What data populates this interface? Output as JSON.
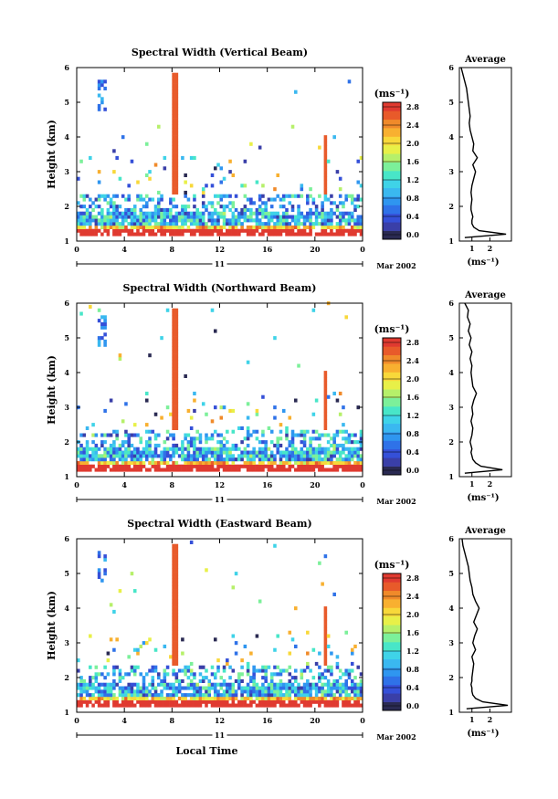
{
  "figure": {
    "bottom_xlabel": "Local Time"
  },
  "colors": {
    "scale": [
      "#2a2a52",
      "#3a3fa8",
      "#3550d8",
      "#2f72e8",
      "#2f96f0",
      "#3ab8f0",
      "#3fd3e8",
      "#48e6c8",
      "#7cf09a",
      "#b6f06a",
      "#e8f048",
      "#f8d83a",
      "#f8b030",
      "#f08a2a",
      "#e85a2a",
      "#e03a30"
    ],
    "line": "#000000"
  },
  "chart_data": [
    {
      "type": "heatmap",
      "title": "Spectral Width (Vertical Beam)",
      "ylabel": "Height (km)",
      "xlim": [
        0,
        24
      ],
      "ylim": [
        1,
        6
      ],
      "xticks": [
        "0",
        "4",
        "8",
        "12",
        "16",
        "20",
        "0"
      ],
      "yticks": [
        "1",
        "2",
        "3",
        "4",
        "5",
        "6"
      ],
      "date_label": "11",
      "date_suffix": "Mar 2002",
      "colorbar": {
        "unit": "(ms⁻¹)",
        "ticks": [
          "0.0",
          "0.4",
          "0.8",
          "1.2",
          "1.6",
          "2.0",
          "2.4",
          "2.8"
        ],
        "range": [
          0,
          3.0
        ]
      },
      "average": {
        "title": "Average",
        "xlabel": "(ms⁻¹)",
        "xticks": [
          "1",
          "2"
        ],
        "xlim": [
          0.3,
          3.2
        ],
        "ylim": [
          1,
          6
        ],
        "height": [
          1.1,
          1.2,
          1.3,
          1.4,
          1.5,
          1.6,
          1.7,
          1.8,
          1.9,
          2.0,
          2.2,
          2.4,
          2.6,
          2.8,
          3.0,
          3.2,
          3.4,
          3.6,
          3.8,
          4.0,
          4.2,
          4.4,
          4.6,
          4.8,
          5.0,
          5.2,
          5.4,
          5.6,
          5.8,
          6.0
        ],
        "width": [
          0.6,
          2.9,
          1.4,
          1.1,
          1.0,
          1.0,
          1.05,
          1.0,
          0.95,
          0.95,
          1.0,
          0.95,
          1.0,
          1.1,
          1.2,
          1.05,
          1.3,
          1.05,
          1.1,
          1.0,
          0.9,
          0.85,
          0.9,
          0.85,
          0.8,
          0.75,
          0.7,
          0.6,
          0.5,
          0.4
        ]
      }
    },
    {
      "type": "heatmap",
      "title": "Spectral Width (Northward Beam)",
      "ylabel": "Height (km)",
      "xlim": [
        0,
        24
      ],
      "ylim": [
        1,
        6
      ],
      "xticks": [
        "0",
        "4",
        "8",
        "12",
        "16",
        "20",
        "0"
      ],
      "yticks": [
        "1",
        "2",
        "3",
        "4",
        "5",
        "6"
      ],
      "date_label": "11",
      "date_suffix": "Mar 2002",
      "colorbar": {
        "unit": "(ms⁻¹)",
        "ticks": [
          "0.0",
          "0.4",
          "0.8",
          "1.2",
          "1.6",
          "2.0",
          "2.4",
          "2.8"
        ],
        "range": [
          0,
          3.0
        ]
      },
      "average": {
        "title": "Average",
        "xlabel": "(ms⁻¹)",
        "xticks": [
          "1",
          "2"
        ],
        "xlim": [
          0.3,
          3.2
        ],
        "ylim": [
          1,
          6
        ],
        "height": [
          1.1,
          1.2,
          1.3,
          1.4,
          1.5,
          1.6,
          1.7,
          1.8,
          1.9,
          2.0,
          2.2,
          2.4,
          2.6,
          2.8,
          3.0,
          3.2,
          3.4,
          3.6,
          3.8,
          4.0,
          4.2,
          4.4,
          4.6,
          4.8,
          5.0,
          5.2,
          5.4,
          5.6,
          5.8,
          6.0
        ],
        "width": [
          0.6,
          2.7,
          1.5,
          1.2,
          1.05,
          1.0,
          0.95,
          1.0,
          0.95,
          0.9,
          1.0,
          1.05,
          0.95,
          1.05,
          1.0,
          1.1,
          1.25,
          1.05,
          1.0,
          0.95,
          1.0,
          0.9,
          1.0,
          0.85,
          0.95,
          0.8,
          0.9,
          0.75,
          0.8,
          0.6
        ]
      }
    },
    {
      "type": "heatmap",
      "title": "Spectral Width (Eastward Beam)",
      "ylabel": "Height (km)",
      "xlim": [
        0,
        24
      ],
      "ylim": [
        1,
        6
      ],
      "xticks": [
        "0",
        "4",
        "8",
        "12",
        "16",
        "20",
        "0"
      ],
      "yticks": [
        "1",
        "2",
        "3",
        "4",
        "5",
        "6"
      ],
      "date_label": "11",
      "date_suffix": "Mar 2002",
      "colorbar": {
        "unit": "(ms⁻¹)",
        "ticks": [
          "0.0",
          "0.4",
          "0.8",
          "1.2",
          "1.6",
          "2.0",
          "2.4",
          "2.8"
        ],
        "range": [
          0,
          3.0
        ]
      },
      "average": {
        "title": "Average",
        "xlabel": "(ms⁻¹)",
        "xticks": [
          "1",
          "2"
        ],
        "xlim": [
          0.3,
          3.2
        ],
        "ylim": [
          1,
          6
        ],
        "height": [
          1.1,
          1.2,
          1.3,
          1.4,
          1.5,
          1.6,
          1.7,
          1.8,
          1.9,
          2.0,
          2.2,
          2.4,
          2.6,
          2.8,
          3.0,
          3.2,
          3.4,
          3.6,
          3.8,
          4.0,
          4.2,
          4.4,
          4.6,
          4.8,
          5.0,
          5.2,
          5.4,
          5.6,
          5.8,
          6.0
        ],
        "width": [
          0.7,
          3.0,
          1.6,
          1.2,
          1.05,
          1.0,
          1.0,
          0.95,
          1.0,
          1.0,
          1.05,
          1.1,
          1.0,
          1.2,
          1.05,
          1.15,
          1.3,
          1.1,
          1.25,
          1.4,
          1.2,
          1.05,
          1.0,
          0.9,
          0.85,
          0.8,
          0.7,
          0.6,
          0.5,
          0.45
        ]
      }
    }
  ]
}
